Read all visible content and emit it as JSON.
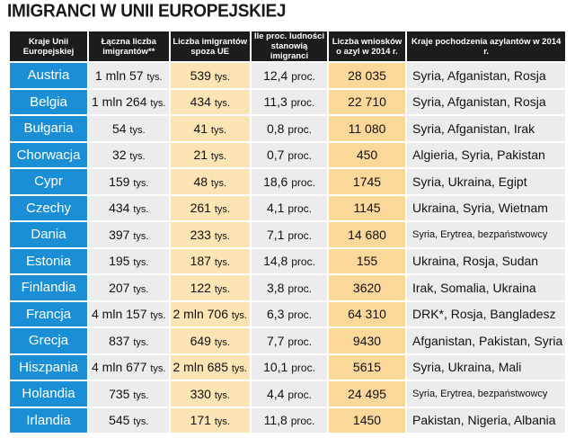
{
  "title": "IMIGRANCI W UNII EUROPEJSKIEJ",
  "headers": [
    "Kraje Unii Europejskiej",
    "Łączna liczba imigrantów**",
    "Liczba imigrantów spoza UE",
    "Ile proc. ludności stanowią imigranci",
    "Liczba wniosków o azyl w 2014 r.",
    "Kraje pochodzenia azylantów w 2014 r."
  ],
  "rows": [
    {
      "country": "Austria",
      "total_a": "1 mln 57",
      "total_u": "tys.",
      "nonEU_a": "539",
      "nonEU_u": "tys.",
      "pct_a": "12,4",
      "pct_u": "proc.",
      "asylum": "28 035",
      "origin": "Syria, Afganistan, Rosja"
    },
    {
      "country": "Belgia",
      "total_a": "1 mln 264",
      "total_u": "tys.",
      "nonEU_a": "434",
      "nonEU_u": "tys.",
      "pct_a": "11,3",
      "pct_u": "proc.",
      "asylum": "22 710",
      "origin": "Syria, Afganistan, Rosja"
    },
    {
      "country": "Bułgaria",
      "total_a": "54",
      "total_u": "tys.",
      "nonEU_a": "41",
      "nonEU_u": "tys.",
      "pct_a": "0,8",
      "pct_u": "proc.",
      "asylum": "11 080",
      "origin": "Syria, Afganistan, Irak"
    },
    {
      "country": "Chorwacja",
      "total_a": "32",
      "total_u": "tys.",
      "nonEU_a": "21",
      "nonEU_u": "tys.",
      "pct_a": "0,7",
      "pct_u": "proc.",
      "asylum": "450",
      "origin": "Algieria, Syria, Pakistan"
    },
    {
      "country": "Cypr",
      "total_a": "159",
      "total_u": "tys.",
      "nonEU_a": "48",
      "nonEU_u": "tys.",
      "pct_a": "18,6",
      "pct_u": "proc.",
      "asylum": "1745",
      "origin": "Syria, Ukraina, Egipt"
    },
    {
      "country": "Czechy",
      "total_a": "434",
      "total_u": "tys.",
      "nonEU_a": "261",
      "nonEU_u": "tys.",
      "pct_a": "4,1",
      "pct_u": "proc.",
      "asylum": "1145",
      "origin": "Ukraina, Syria, Wietnam"
    },
    {
      "country": "Dania",
      "total_a": "397",
      "total_u": "tys.",
      "nonEU_a": "233",
      "nonEU_u": "tys.",
      "pct_a": "7,1",
      "pct_u": "proc.",
      "asylum": "14 680",
      "origin": "Syria, Erytrea, bezpaństwowcy",
      "small": true
    },
    {
      "country": "Estonia",
      "total_a": "195",
      "total_u": "tys.",
      "nonEU_a": "187",
      "nonEU_u": "tys.",
      "pct_a": "14,8",
      "pct_u": "proc.",
      "asylum": "155",
      "origin": "Ukraina, Rosja, Sudan"
    },
    {
      "country": "Finlandia",
      "total_a": "207",
      "total_u": "tys.",
      "nonEU_a": "122",
      "nonEU_u": "tys.",
      "pct_a": "3,8",
      "pct_u": "proc.",
      "asylum": "3620",
      "origin": "Irak, Somalia, Ukraina"
    },
    {
      "country": "Francja",
      "total_a": "4 mln 157",
      "total_u": "tys.",
      "nonEU_a": "2 mln 706",
      "nonEU_u": "tys.",
      "pct_a": "6,3",
      "pct_u": "proc.",
      "asylum": "64 310",
      "origin": "DRK*, Rosja, Bangladesz"
    },
    {
      "country": "Grecja",
      "total_a": "837",
      "total_u": "tys.",
      "nonEU_a": "649",
      "nonEU_u": "tys.",
      "pct_a": "7,7",
      "pct_u": "proc.",
      "asylum": "9430",
      "origin": "Afganistan, Pakistan, Syria"
    },
    {
      "country": "Hiszpania",
      "total_a": "4 mln 677",
      "total_u": "tys.",
      "nonEU_a": "2 mln 685",
      "nonEU_u": "tys.",
      "pct_a": "10,1",
      "pct_u": "proc.",
      "asylum": "5615",
      "origin": "Syria, Ukraina, Mali"
    },
    {
      "country": "Holandia",
      "total_a": "735",
      "total_u": "tys.",
      "nonEU_a": "330",
      "nonEU_u": "tys.",
      "pct_a": "4,4",
      "pct_u": "proc.",
      "asylum": "24 495",
      "origin": "Syria, Erytrea, bezpaństwowcy",
      "small": true
    },
    {
      "country": "Irlandia",
      "total_a": "545",
      "total_u": "tys.",
      "nonEU_a": "171",
      "nonEU_u": "tys.",
      "pct_a": "11,8",
      "pct_u": "proc.",
      "asylum": "1450",
      "origin": "Pakistan, Nigeria, Albania"
    }
  ],
  "colors": {
    "country_bg": "#1b8fd6",
    "header_bg": "#1c1c1c",
    "cell_bg": "#ececec",
    "highlight_bg": "#fde4b4",
    "highlight_strong_bg": "#fbd79a"
  }
}
